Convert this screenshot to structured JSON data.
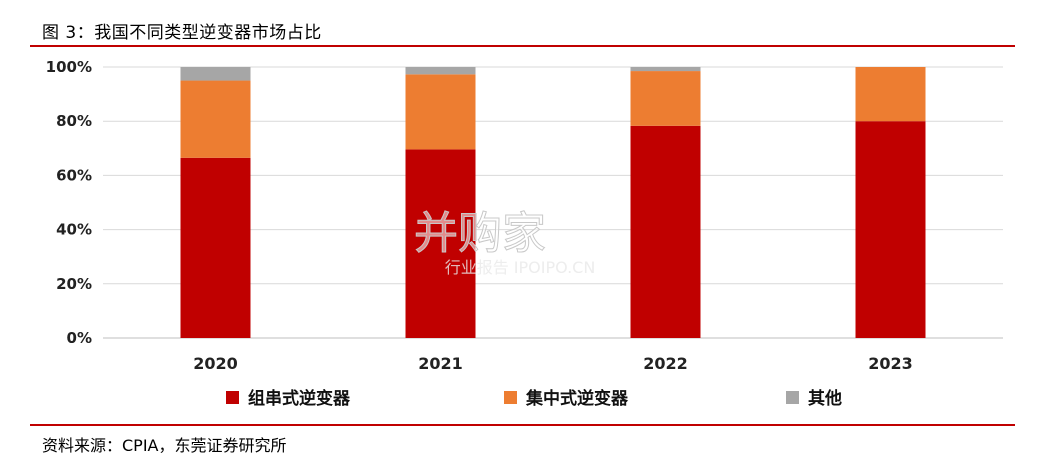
{
  "figure_title": "图 3：我国不同类型逆变器市场占比",
  "source_note": "资料来源：CPIA，东莞证券研究所",
  "watermark": {
    "brand": "并购家",
    "tagline": "行业报告 IPOIPO.CN"
  },
  "chart_data": {
    "type": "bar",
    "stacked": true,
    "categories": [
      "2020",
      "2021",
      "2022",
      "2023"
    ],
    "series": [
      {
        "name": "组串式逆变器",
        "color": "#c00000",
        "values": [
          66.5,
          69.6,
          78.3,
          80.0
        ]
      },
      {
        "name": "集中式逆变器",
        "color": "#ed7d31",
        "values": [
          28.5,
          27.7,
          20.2,
          20.0
        ]
      },
      {
        "name": "其他",
        "color": "#a6a6a6",
        "values": [
          5.0,
          2.7,
          1.5,
          0.0
        ]
      }
    ],
    "ylim": [
      0,
      100
    ],
    "yticks": [
      "0%",
      "20%",
      "40%",
      "60%",
      "80%",
      "100%"
    ],
    "grid": true,
    "legend_position": "bottom"
  }
}
